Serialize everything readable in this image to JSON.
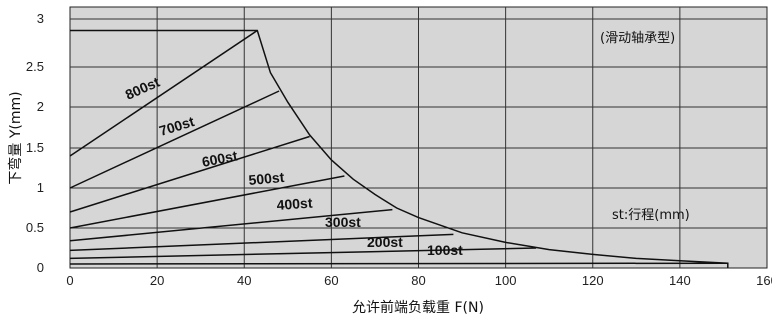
{
  "chart_data": {
    "type": "line",
    "title": "",
    "xlabel": "允许前端负载重 F(N)",
    "ylabel": "下弯量 Y(mm)",
    "xlim": [
      0,
      160
    ],
    "ylim": [
      0,
      3
    ],
    "xticks": [
      0,
      20,
      40,
      60,
      80,
      100,
      120,
      140,
      160
    ],
    "yticks": [
      0,
      0.5,
      1,
      1.5,
      2,
      2.5,
      3
    ],
    "xtick_labels": [
      "0",
      "20",
      "40",
      "60",
      "80",
      "100",
      "120",
      "140",
      "160"
    ],
    "ytick_labels": [
      "0",
      "0.5",
      "1",
      "1.5",
      "2",
      "2.5",
      "3"
    ],
    "grid": true,
    "annotations": [
      "(滑动轴承型)",
      "st:行程(mm)"
    ],
    "series": [
      {
        "name": "800st",
        "x": [
          0,
          43
        ],
        "y": [
          1.4,
          2.88
        ]
      },
      {
        "name": "700st",
        "x": [
          0,
          48
        ],
        "y": [
          1.0,
          2.2
        ]
      },
      {
        "name": "600st",
        "x": [
          0,
          55
        ],
        "y": [
          0.7,
          1.64
        ]
      },
      {
        "name": "500st",
        "x": [
          0,
          63
        ],
        "y": [
          0.5,
          1.15
        ]
      },
      {
        "name": "400st",
        "x": [
          0,
          74
        ],
        "y": [
          0.34,
          0.73
        ]
      },
      {
        "name": "300st",
        "x": [
          0,
          88
        ],
        "y": [
          0.22,
          0.42
        ]
      },
      {
        "name": "100st",
        "x": [
          0,
          107
        ],
        "y": [
          0.12,
          0.25
        ]
      },
      {
        "name": "200st",
        "x": [
          0,
          151
        ],
        "y": [
          0.05,
          0.06
        ]
      }
    ],
    "envelope": {
      "x": [
        0,
        43,
        46,
        50,
        55,
        60,
        65,
        70,
        75,
        80,
        90,
        100,
        110,
        120,
        130,
        140,
        151,
        151
      ],
      "y": [
        2.88,
        2.88,
        2.43,
        2.06,
        1.66,
        1.35,
        1.11,
        0.92,
        0.75,
        0.63,
        0.44,
        0.32,
        0.23,
        0.17,
        0.12,
        0.09,
        0.06,
        0
      ]
    }
  }
}
